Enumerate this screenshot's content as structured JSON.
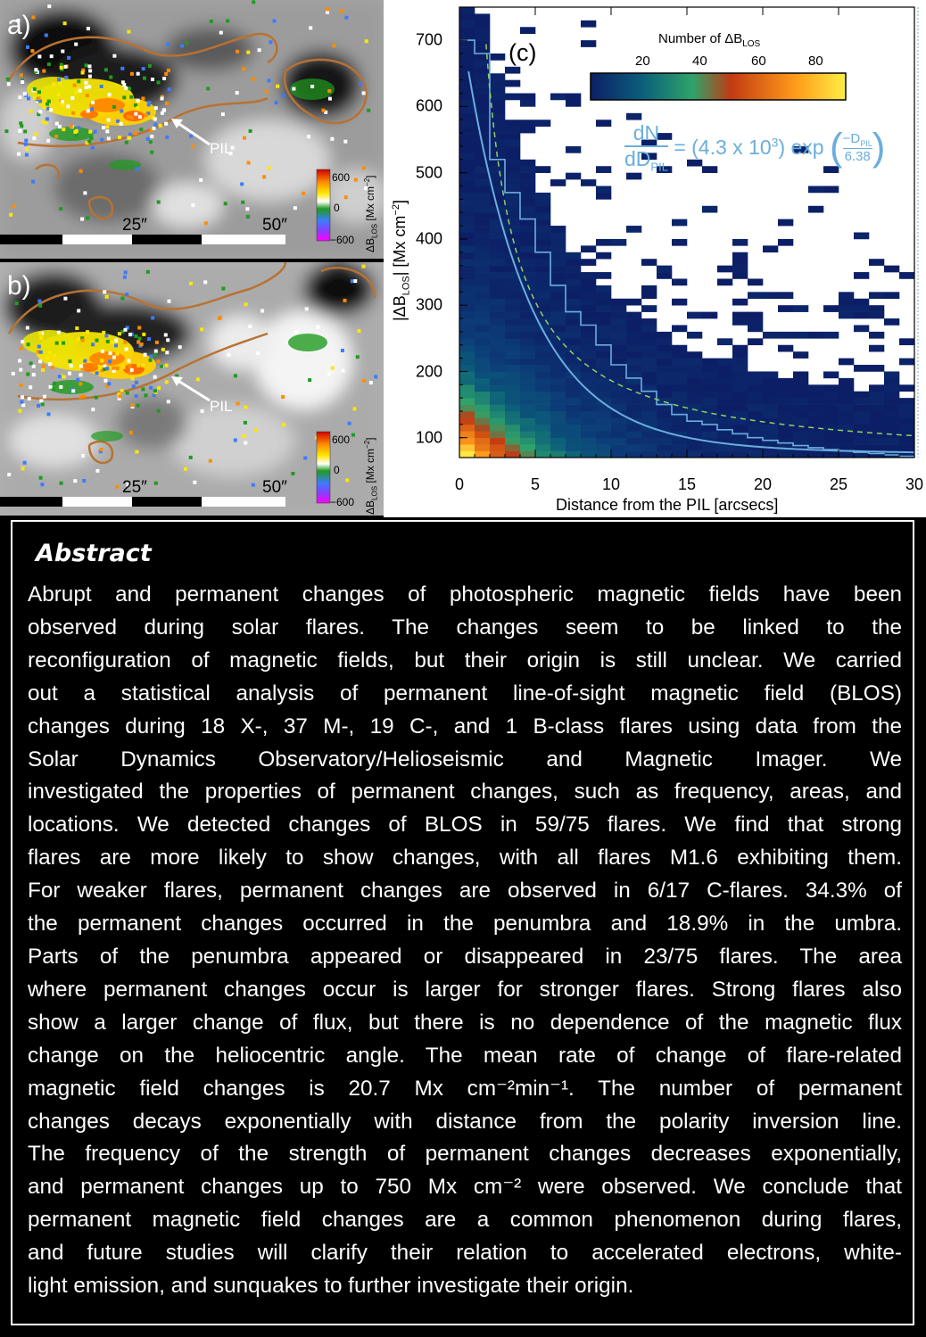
{
  "panel_a": {
    "label": "a)",
    "pil_label": "PIL",
    "scale_ticks": [
      "25″",
      "50″"
    ],
    "colorbar": {
      "ticks": [
        "600",
        "0",
        "−600"
      ],
      "label": "ΔB",
      "label_sub": "LOS",
      "unit": "[Mx cm",
      "unit_sup": "−2",
      "unit_end": "]"
    }
  },
  "panel_b": {
    "label": "b)",
    "pil_label": "PIL",
    "scale_ticks": [
      "25″",
      "50″"
    ],
    "colorbar": {
      "ticks": [
        "600",
        "0",
        "−600"
      ],
      "label": "ΔB",
      "label_sub": "LOS",
      "unit": "[Mx cm",
      "unit_sup": "−2",
      "unit_end": "]"
    }
  },
  "panel_c": {
    "label": "(c)",
    "colorbar_title": "Number of ΔB",
    "colorbar_title_sub": "LOS",
    "colorbar_ticks": [
      "20",
      "40",
      "60",
      "80"
    ],
    "formula": {
      "num": "dN",
      "den": "dD",
      "den_sub": "PIL",
      "coef": "= (4.3 x 10",
      "coef_sup": "3",
      "coef_end": ") exp",
      "frac_num": "−D",
      "frac_num_sub": "PIL",
      "frac_den": "6.38"
    },
    "colors": {
      "curve": "#6aaedd",
      "dashed": "#8fd35c",
      "low": "#0c2b6a",
      "high": "#ffe833"
    }
  },
  "chart_data": {
    "type": "heatmap",
    "title": "",
    "xlabel": "Distance from the PIL [arcsecs]",
    "ylabel": "|ΔB",
    "ylabel_sub": "LOS",
    "ylabel_end": "| [Mx cm",
    "ylabel_sup": "−2",
    "ylabel_close": "]",
    "x_ticks": [
      "0",
      "5",
      "10",
      "15",
      "20",
      "25",
      "30"
    ],
    "y_ticks": [
      "100",
      "200",
      "300",
      "400",
      "500",
      "600",
      "700"
    ],
    "xlim": [
      0,
      30
    ],
    "ylim": [
      70,
      750
    ],
    "colorbar_range": [
      1,
      90
    ],
    "fit": {
      "amplitude": 4300,
      "scale": 6.38,
      "description": "dN/dD = 4.3e3 exp(-D/6.38)"
    },
    "step_histogram": [
      [
        0,
        700
      ],
      [
        1,
        680
      ],
      [
        2,
        520
      ],
      [
        3,
        470
      ],
      [
        4,
        430
      ],
      [
        5,
        380
      ],
      [
        6,
        330
      ],
      [
        7,
        290
      ],
      [
        8,
        270
      ],
      [
        9,
        240
      ],
      [
        10,
        210
      ],
      [
        11,
        190
      ],
      [
        12,
        170
      ],
      [
        13,
        150
      ],
      [
        14,
        135
      ],
      [
        15,
        125
      ],
      [
        16,
        120
      ],
      [
        17,
        112
      ],
      [
        18,
        106
      ],
      [
        19,
        100
      ],
      [
        20,
        96
      ],
      [
        21,
        92
      ],
      [
        22,
        88
      ],
      [
        23,
        85
      ],
      [
        24,
        82
      ],
      [
        25,
        80
      ],
      [
        26,
        78
      ],
      [
        27,
        76
      ],
      [
        28,
        74
      ],
      [
        29,
        72
      ],
      [
        30,
        70
      ]
    ]
  },
  "abstract": {
    "heading": "Abstract",
    "lines": [
      "Abrupt and permanent changes of photospheric magnetic fields have been",
      "observed during solar flares. The changes seem to be linked to the",
      "reconfiguration of magnetic fields, but their origin is still unclear. We carried",
      "out a statistical analysis of permanent line-of-sight magnetic field (BLOS)",
      "changes during 18 X-, 37 M-, 19 C-, and 1 B-class flares using data from the",
      "Solar Dynamics Observatory/Helioseismic and Magnetic Imager. We",
      "investigated the properties of permanent changes, such as frequency, areas, and",
      "locations. We detected changes of BLOS in 59/75 flares. We find that strong",
      "flares are more likely to show changes, with all flares  M1.6 exhibiting them.",
      "For weaker flares, permanent changes are observed in 6/17 C-flares. 34.3% of",
      "the permanent changes occurred in the penumbra and 18.9% in the umbra.",
      "Parts of the penumbra appeared or disappeared in 23/75 flares. The area",
      "where permanent changes occur is larger for stronger flares. Strong flares also",
      "show a larger change of flux, but there is no dependence of the magnetic flux",
      "change on the heliocentric angle. The mean rate of change of flare-related",
      "magnetic field changes is 20.7 Mx cm⁻²min⁻¹. The number of permanent",
      "changes decays exponentially with distance from the polarity inversion line.",
      "The frequency of the strength of permanent changes decreases exponentially,",
      "and permanent changes up to 750 Mx cm⁻² were observed. We conclude that",
      "permanent magnetic field changes are a common phenomenon during flares,",
      "and future studies will clarify their relation to accelerated electrons, white-",
      "light emission, and sunquakes to further investigate their origin."
    ]
  }
}
